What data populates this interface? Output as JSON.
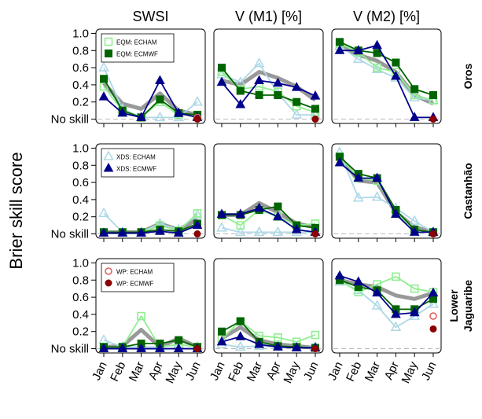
{
  "chart_data": {
    "type": "line",
    "ylabel": "Brier skill score",
    "columns": [
      "SWSI",
      "V (M1) [%]",
      "V (M2) [%]"
    ],
    "rows": [
      "Oros",
      "Castanhão",
      "Lower\nJaguaribe"
    ],
    "categories": [
      "Jan",
      "Feb",
      "Mar",
      "Apr",
      "May",
      "Jun"
    ],
    "ylim": [
      -0.05,
      1.05
    ],
    "yticks": [
      {
        "v": 0,
        "label": "No skill"
      },
      {
        "v": 0.2,
        "label": "0.2"
      },
      {
        "v": 0.4,
        "label": "0.4"
      },
      {
        "v": 0.6,
        "label": "0.6"
      },
      {
        "v": 0.8,
        "label": "0.8"
      },
      {
        "v": 1.0,
        "label": "1.0"
      }
    ],
    "styles": {
      "EQM: ECHAM": {
        "color": "#90ee90",
        "marker": "square-open",
        "line": true
      },
      "EQM: ECMWF": {
        "color": "#006400",
        "marker": "square-filled",
        "line": true
      },
      "XDS: ECHAM": {
        "color": "#add8e6",
        "marker": "triangle-open",
        "line": true
      },
      "XDS: ECMWF": {
        "color": "#00008b",
        "marker": "triangle-filled",
        "line": true
      },
      "WP: ECHAM": {
        "color": "#e06060",
        "marker": "circle-open",
        "line": false
      },
      "WP: ECMWF": {
        "color": "#8b0000",
        "marker": "circle-filled",
        "line": false
      },
      "reference": {
        "color": "#999999",
        "marker": "none",
        "line": true
      }
    },
    "legends": [
      {
        "row": 0,
        "col": 0,
        "entries": [
          "EQM: ECHAM",
          "EQM: ECMWF"
        ]
      },
      {
        "row": 1,
        "col": 0,
        "entries": [
          "XDS: ECHAM",
          "XDS: ECMWF"
        ]
      },
      {
        "row": 2,
        "col": 0,
        "entries": [
          "WP: ECHAM",
          "WP: ECMWF"
        ]
      }
    ],
    "panels": [
      {
        "row": 0,
        "col": 0,
        "series": [
          {
            "name": "reference",
            "values": [
              0.42,
              0.18,
              0.12,
              0.3,
              0.1,
              0.05
            ]
          },
          {
            "name": "XDS: ECHAM",
            "values": [
              0.6,
              0.12,
              0.02,
              0.02,
              0.02,
              0.2
            ]
          },
          {
            "name": "EQM: ECHAM",
            "values": [
              0.38,
              0.1,
              0.02,
              0.2,
              0.05,
              0.05
            ]
          },
          {
            "name": "EQM: ECMWF",
            "values": [
              0.47,
              0.1,
              0.02,
              0.23,
              0.07,
              0.05
            ]
          },
          {
            "name": "XDS: ECMWF",
            "values": [
              0.26,
              0.07,
              0.02,
              0.45,
              0.07,
              0.02
            ]
          },
          {
            "name": "WP: ECHAM",
            "values": [
              null,
              null,
              null,
              null,
              null,
              0.02
            ]
          },
          {
            "name": "WP: ECMWF",
            "values": [
              null,
              null,
              null,
              null,
              null,
              0.0
            ]
          }
        ]
      },
      {
        "row": 0,
        "col": 1,
        "series": [
          {
            "name": "reference",
            "values": [
              0.45,
              0.4,
              0.55,
              0.48,
              0.38,
              0.22
            ]
          },
          {
            "name": "XDS: ECHAM",
            "values": [
              0.52,
              0.43,
              0.65,
              0.3,
              0.05,
              0.05
            ]
          },
          {
            "name": "EQM: ECHAM",
            "values": [
              0.55,
              0.35,
              0.38,
              0.32,
              0.15,
              0.08
            ]
          },
          {
            "name": "EQM: ECMWF",
            "values": [
              0.6,
              0.33,
              0.28,
              0.28,
              0.2,
              0.12
            ]
          },
          {
            "name": "XDS: ECMWF",
            "values": [
              0.43,
              0.17,
              0.45,
              0.42,
              0.37,
              0.27
            ]
          },
          {
            "name": "WP: ECMWF",
            "values": [
              null,
              null,
              null,
              null,
              null,
              0.0
            ]
          }
        ]
      },
      {
        "row": 0,
        "col": 2,
        "series": [
          {
            "name": "reference",
            "values": [
              0.85,
              0.75,
              0.68,
              0.55,
              0.28,
              0.18
            ]
          },
          {
            "name": "XDS: ECHAM",
            "values": [
              0.85,
              0.7,
              0.58,
              0.48,
              0.25,
              0.22
            ]
          },
          {
            "name": "EQM: ECHAM",
            "values": [
              0.88,
              0.78,
              0.6,
              0.55,
              0.28,
              0.22
            ]
          },
          {
            "name": "EQM: ECMWF",
            "values": [
              0.9,
              0.8,
              0.77,
              0.66,
              0.35,
              0.28
            ]
          },
          {
            "name": "XDS: ECMWF",
            "values": [
              0.8,
              0.8,
              0.86,
              0.5,
              0.02,
              0.02
            ]
          },
          {
            "name": "WP: ECMWF",
            "values": [
              null,
              null,
              null,
              null,
              null,
              0.0
            ]
          }
        ]
      },
      {
        "row": 1,
        "col": 0,
        "series": [
          {
            "name": "reference",
            "values": [
              0.02,
              0.02,
              0.02,
              0.12,
              0.05,
              0.17
            ]
          },
          {
            "name": "XDS: ECHAM",
            "values": [
              0.24,
              0.02,
              0.02,
              0.12,
              0.05,
              0.22
            ]
          },
          {
            "name": "EQM: ECHAM",
            "values": [
              0.02,
              0.02,
              0.02,
              0.1,
              0.04,
              0.24
            ]
          },
          {
            "name": "EQM: ECMWF",
            "values": [
              0.02,
              0.02,
              0.02,
              0.05,
              0.03,
              0.12
            ]
          },
          {
            "name": "XDS: ECMWF",
            "values": [
              0.01,
              0.01,
              0.01,
              0.03,
              0.01,
              0.1
            ]
          },
          {
            "name": "WP: ECMWF",
            "values": [
              null,
              null,
              null,
              null,
              null,
              0.0
            ]
          }
        ]
      },
      {
        "row": 1,
        "col": 1,
        "series": [
          {
            "name": "reference",
            "values": [
              0.22,
              0.22,
              0.36,
              0.25,
              0.12,
              0.08
            ]
          },
          {
            "name": "XDS: ECHAM",
            "values": [
              0.07,
              0.02,
              0.02,
              0.02,
              0.02,
              0.02
            ]
          },
          {
            "name": "EQM: ECHAM",
            "values": [
              0.22,
              0.1,
              0.28,
              0.2,
              0.1,
              0.12
            ]
          },
          {
            "name": "EQM: ECMWF",
            "values": [
              0.22,
              0.22,
              0.28,
              0.32,
              0.1,
              0.07
            ]
          },
          {
            "name": "XDS: ECMWF",
            "values": [
              0.23,
              0.23,
              0.3,
              0.2,
              0.05,
              0.02
            ]
          },
          {
            "name": "WP: ECMWF",
            "values": [
              null,
              null,
              null,
              null,
              null,
              0.0
            ]
          }
        ]
      },
      {
        "row": 1,
        "col": 2,
        "series": [
          {
            "name": "reference",
            "values": [
              0.9,
              0.62,
              0.6,
              0.25,
              0.08,
              0.02
            ]
          },
          {
            "name": "XDS: ECHAM",
            "values": [
              0.95,
              0.42,
              0.43,
              0.3,
              0.15,
              0.02
            ]
          },
          {
            "name": "EQM: ECHAM",
            "values": [
              0.9,
              0.65,
              0.62,
              0.25,
              0.05,
              0.02
            ]
          },
          {
            "name": "EQM: ECMWF",
            "values": [
              0.9,
              0.7,
              0.65,
              0.28,
              0.05,
              0.02
            ]
          },
          {
            "name": "XDS: ECMWF",
            "values": [
              0.83,
              0.65,
              0.65,
              0.23,
              0.02,
              0.02
            ]
          },
          {
            "name": "WP: ECMWF",
            "values": [
              null,
              null,
              null,
              null,
              null,
              0.0
            ]
          }
        ]
      },
      {
        "row": 2,
        "col": 0,
        "series": [
          {
            "name": "reference",
            "values": [
              0.02,
              0.03,
              0.22,
              0.02,
              0.12,
              0.02
            ]
          },
          {
            "name": "XDS: ECHAM",
            "values": [
              0.1,
              0.02,
              0.02,
              0.02,
              0.05,
              0.02
            ]
          },
          {
            "name": "EQM: ECHAM",
            "values": [
              0.02,
              0.02,
              0.38,
              0.02,
              0.05,
              0.02
            ]
          },
          {
            "name": "EQM: ECMWF",
            "values": [
              0.02,
              0.02,
              0.06,
              0.06,
              0.1,
              0.02
            ]
          },
          {
            "name": "XDS: ECMWF",
            "values": [
              0.0,
              0.0,
              0.0,
              0.0,
              0.0,
              0.0
            ]
          },
          {
            "name": "WP: ECMWF",
            "values": [
              null,
              null,
              null,
              null,
              null,
              0.0
            ]
          }
        ]
      },
      {
        "row": 2,
        "col": 1,
        "series": [
          {
            "name": "reference",
            "values": [
              0.12,
              0.25,
              0.1,
              0.05,
              0.03,
              0.01
            ]
          },
          {
            "name": "XDS: ECHAM",
            "values": [
              0.05,
              0.02,
              0.03,
              0.02,
              0.02,
              0.02
            ]
          },
          {
            "name": "EQM: ECHAM",
            "values": [
              0.12,
              0.32,
              0.15,
              0.13,
              0.08,
              0.16
            ]
          },
          {
            "name": "EQM: ECMWF",
            "values": [
              0.2,
              0.32,
              0.08,
              0.03,
              0.02,
              0.01
            ]
          },
          {
            "name": "XDS: ECMWF",
            "values": [
              0.08,
              0.14,
              0.05,
              0.02,
              0.01,
              0.01
            ]
          },
          {
            "name": "WP: ECMWF",
            "values": [
              null,
              null,
              null,
              null,
              null,
              0.0
            ]
          }
        ]
      },
      {
        "row": 2,
        "col": 2,
        "series": [
          {
            "name": "reference",
            "values": [
              0.8,
              0.75,
              0.72,
              0.62,
              0.58,
              0.65
            ]
          },
          {
            "name": "XDS: ECHAM",
            "values": [
              0.78,
              0.68,
              0.5,
              0.25,
              0.38,
              0.52
            ]
          },
          {
            "name": "EQM: ECHAM",
            "values": [
              0.8,
              0.66,
              0.75,
              0.84,
              0.7,
              0.66
            ]
          },
          {
            "name": "EQM: ECMWF",
            "values": [
              0.8,
              0.72,
              0.68,
              0.46,
              0.46,
              0.58
            ]
          },
          {
            "name": "XDS: ECMWF",
            "values": [
              0.85,
              0.78,
              0.65,
              0.4,
              0.42,
              0.65
            ]
          },
          {
            "name": "WP: ECHAM",
            "values": [
              null,
              null,
              null,
              null,
              null,
              0.38
            ]
          },
          {
            "name": "WP: ECMWF",
            "values": [
              null,
              null,
              null,
              null,
              null,
              0.23
            ]
          }
        ]
      }
    ]
  }
}
